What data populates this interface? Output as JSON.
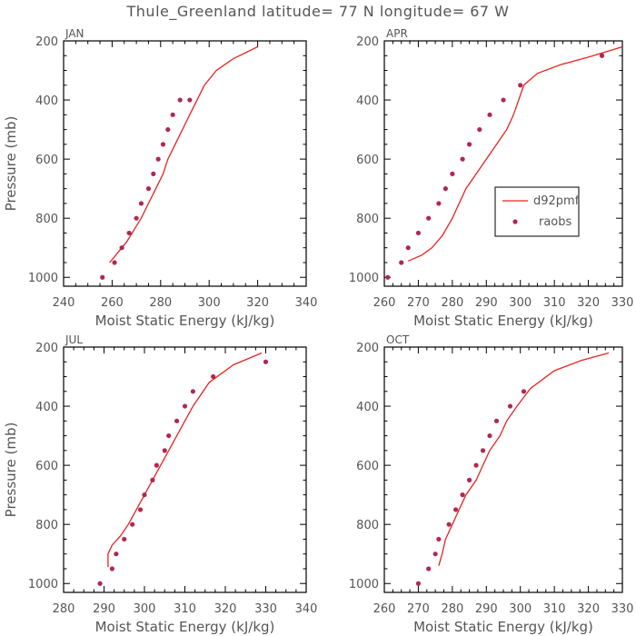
{
  "title": "Thule_Greenland  latitude= 77 N longitude= 67 W",
  "colors": {
    "model": "#e8231f",
    "obs": "#b0284f",
    "axis": "#000000",
    "text": "#555555"
  },
  "legend": {
    "model": "d92pmf",
    "obs": "raobs"
  },
  "chart_data": [
    {
      "type": "line",
      "panel": "JAN",
      "xlabel": "Moist Static Energy (kJ/kg)",
      "ylabel": "Pressure (mb)",
      "xlim": [
        240,
        340
      ],
      "ylim": [
        1030,
        200
      ],
      "xticks": [
        240,
        260,
        280,
        300,
        320,
        340
      ],
      "yticks": [
        200,
        400,
        600,
        800,
        1000
      ],
      "series": [
        {
          "name": "d92pmf",
          "kind": "line",
          "x": [
            259,
            262,
            266,
            269,
            272,
            275,
            278,
            281,
            283,
            286,
            289,
            292,
            295,
            298,
            303,
            310,
            320
          ],
          "y": [
            950,
            920,
            880,
            840,
            800,
            750,
            700,
            650,
            600,
            550,
            500,
            450,
            400,
            350,
            300,
            260,
            220
          ]
        },
        {
          "name": "raobs",
          "kind": "scatter",
          "x": [
            256,
            261,
            264,
            267,
            270,
            272,
            275,
            277,
            279,
            281,
            283,
            285,
            288,
            292
          ],
          "y": [
            1000,
            950,
            900,
            850,
            800,
            750,
            700,
            650,
            600,
            550,
            500,
            450,
            400,
            400
          ]
        }
      ]
    },
    {
      "type": "line",
      "panel": "APR",
      "xlabel": "Moist Static Energy (kJ/kg)",
      "ylabel": "",
      "xlim": [
        260,
        330
      ],
      "ylim": [
        1030,
        200
      ],
      "xticks": [
        260,
        270,
        280,
        290,
        300,
        310,
        320,
        330
      ],
      "yticks": [
        200,
        400,
        600,
        800,
        1000
      ],
      "series": [
        {
          "name": "d92pmf",
          "kind": "line",
          "x": [
            267,
            271,
            274,
            277,
            280,
            282,
            284,
            287,
            290,
            293,
            296,
            298,
            301,
            305,
            312,
            320,
            330
          ],
          "y": [
            945,
            925,
            900,
            860,
            800,
            750,
            700,
            650,
            600,
            550,
            500,
            450,
            350,
            310,
            280,
            255,
            220
          ]
        },
        {
          "name": "raobs",
          "kind": "scatter",
          "x": [
            261,
            265,
            267,
            270,
            273,
            276,
            278,
            280,
            283,
            285,
            288,
            291,
            295,
            300,
            324
          ],
          "y": [
            1000,
            950,
            900,
            850,
            800,
            750,
            700,
            650,
            600,
            550,
            500,
            450,
            400,
            350,
            250
          ]
        }
      ]
    },
    {
      "type": "line",
      "panel": "JUL",
      "xlabel": "Moist Static Energy (kJ/kg)",
      "ylabel": "Pressure (mb)",
      "xlim": [
        280,
        340
      ],
      "ylim": [
        1030,
        200
      ],
      "xticks": [
        280,
        290,
        300,
        310,
        320,
        330,
        340
      ],
      "yticks": [
        200,
        400,
        600,
        800,
        1000
      ],
      "series": [
        {
          "name": "d92pmf",
          "kind": "line",
          "x": [
            291,
            291,
            292,
            294,
            296,
            298,
            300,
            302,
            304,
            306,
            308,
            310,
            312,
            316,
            322,
            329
          ],
          "y": [
            945,
            900,
            870,
            840,
            800,
            750,
            700,
            650,
            600,
            550,
            500,
            450,
            400,
            320,
            260,
            220
          ]
        },
        {
          "name": "raobs",
          "kind": "scatter",
          "x": [
            289,
            292,
            293,
            295,
            297,
            299,
            300,
            302,
            303,
            305,
            306,
            308,
            310,
            312,
            317,
            330
          ],
          "y": [
            1000,
            950,
            900,
            850,
            800,
            750,
            700,
            650,
            600,
            550,
            500,
            450,
            400,
            350,
            300,
            250
          ]
        }
      ]
    },
    {
      "type": "line",
      "panel": "OCT",
      "xlabel": "Moist Static Energy (kJ/kg)",
      "ylabel": "",
      "xlim": [
        260,
        330
      ],
      "ylim": [
        1030,
        200
      ],
      "xticks": [
        260,
        270,
        280,
        290,
        300,
        310,
        320,
        330
      ],
      "yticks": [
        200,
        400,
        600,
        800,
        1000
      ],
      "series": [
        {
          "name": "d92pmf",
          "kind": "line",
          "x": [
            276,
            277,
            278,
            280,
            282,
            284,
            287,
            289,
            291,
            294,
            296,
            299,
            303,
            310,
            318,
            326
          ],
          "y": [
            940,
            900,
            850,
            800,
            750,
            700,
            650,
            600,
            550,
            500,
            450,
            400,
            340,
            280,
            245,
            220
          ]
        },
        {
          "name": "raobs",
          "kind": "scatter",
          "x": [
            270,
            273,
            275,
            276,
            279,
            281,
            283,
            285,
            287,
            289,
            291,
            293,
            297,
            301
          ],
          "y": [
            1000,
            950,
            900,
            850,
            800,
            750,
            700,
            650,
            600,
            550,
            500,
            450,
            400,
            350
          ]
        }
      ]
    }
  ]
}
